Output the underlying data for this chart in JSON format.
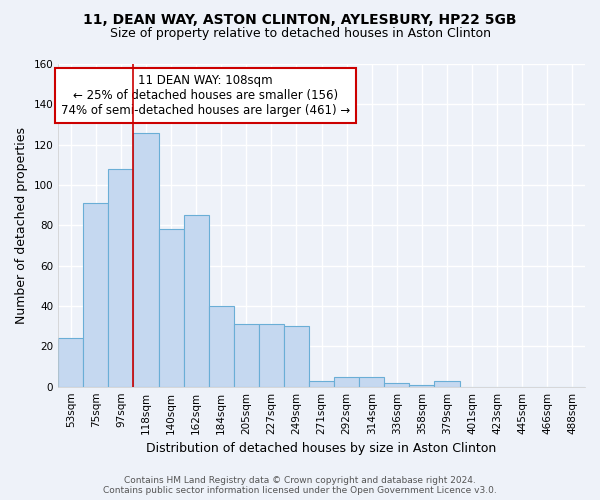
{
  "title1": "11, DEAN WAY, ASTON CLINTON, AYLESBURY, HP22 5GB",
  "title2": "Size of property relative to detached houses in Aston Clinton",
  "xlabel": "Distribution of detached houses by size in Aston Clinton",
  "ylabel": "Number of detached properties",
  "footer1": "Contains HM Land Registry data © Crown copyright and database right 2024.",
  "footer2": "Contains public sector information licensed under the Open Government Licence v3.0.",
  "annotation_line1": "11 DEAN WAY: 108sqm",
  "annotation_line2": "← 25% of detached houses are smaller (156)",
  "annotation_line3": "74% of semi-detached houses are larger (461) →",
  "bar_labels": [
    "53sqm",
    "75sqm",
    "97sqm",
    "118sqm",
    "140sqm",
    "162sqm",
    "184sqm",
    "205sqm",
    "227sqm",
    "249sqm",
    "271sqm",
    "292sqm",
    "314sqm",
    "336sqm",
    "358sqm",
    "379sqm",
    "401sqm",
    "423sqm",
    "445sqm",
    "466sqm",
    "488sqm"
  ],
  "bar_values": [
    24,
    91,
    108,
    126,
    78,
    85,
    40,
    31,
    31,
    30,
    3,
    5,
    5,
    2,
    1,
    3,
    0,
    0,
    0,
    0,
    0
  ],
  "bar_color": "#c5d8f0",
  "bar_edge_color": "#6aaed6",
  "red_line_x": 3.0,
  "ylim": [
    0,
    160
  ],
  "yticks": [
    0,
    20,
    40,
    60,
    80,
    100,
    120,
    140,
    160
  ],
  "background_color": "#eef2f9",
  "grid_color": "#ffffff",
  "annotation_box_color": "#ffffff",
  "annotation_box_edge": "#cc0000",
  "red_line_color": "#cc0000",
  "title1_fontsize": 10,
  "title2_fontsize": 9,
  "axis_label_fontsize": 9,
  "tick_fontsize": 7.5,
  "annotation_fontsize": 8.5,
  "footer_fontsize": 6.5
}
